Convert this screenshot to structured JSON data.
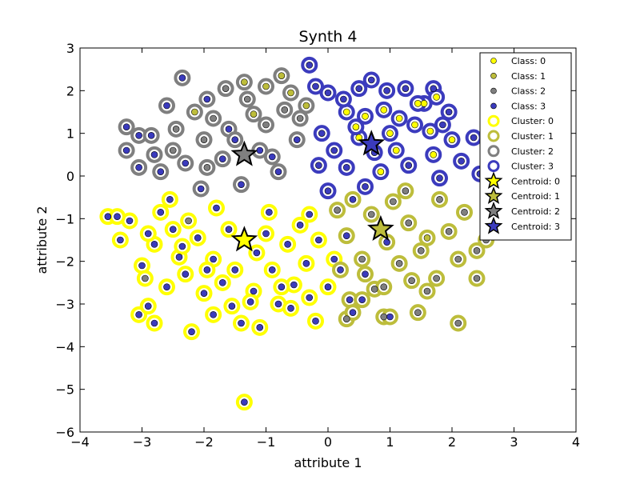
{
  "chart_data": {
    "type": "scatter",
    "title": "Synth 4",
    "xlabel": "attribute 1",
    "ylabel": "attribute 2",
    "xlim": [
      -4,
      4
    ],
    "ylim": [
      -6,
      3
    ],
    "xticks": [
      -4,
      -3,
      -2,
      -1,
      0,
      1,
      2,
      3,
      4
    ],
    "yticks": [
      -6,
      -5,
      -4,
      -3,
      -2,
      -1,
      0,
      1,
      2,
      3
    ],
    "xtick_labels": [
      "−4",
      "−3",
      "−2",
      "−1",
      "0",
      "1",
      "2",
      "3",
      "4"
    ],
    "ytick_labels": [
      "−6",
      "−5",
      "−4",
      "−3",
      "−2",
      "−1",
      "0",
      "1",
      "2",
      "3"
    ],
    "grid": false,
    "legend_position": "top-right",
    "legend": [
      {
        "label": "Class: 0",
        "kind": "class",
        "color": "#ffff00"
      },
      {
        "label": "Class: 1",
        "kind": "class",
        "color": "#bdbd3b"
      },
      {
        "label": "Class: 2",
        "kind": "class",
        "color": "#7f7f7f"
      },
      {
        "label": "Class: 3",
        "kind": "class",
        "color": "#3b3bbd"
      },
      {
        "label": "Cluster: 0",
        "kind": "cluster",
        "color": "#ffff00"
      },
      {
        "label": "Cluster: 1",
        "kind": "cluster",
        "color": "#bdbd3b"
      },
      {
        "label": "Cluster: 2",
        "kind": "cluster",
        "color": "#7f7f7f"
      },
      {
        "label": "Cluster: 3",
        "kind": "cluster",
        "color": "#3b3bbd"
      },
      {
        "label": "Centroid: 0",
        "kind": "centroid",
        "color": "#ffff00"
      },
      {
        "label": "Centroid: 1",
        "kind": "centroid",
        "color": "#bdbd3b"
      },
      {
        "label": "Centroid: 2",
        "kind": "centroid",
        "color": "#7f7f7f"
      },
      {
        "label": "Centroid: 3",
        "kind": "centroid",
        "color": "#3b3bbd"
      }
    ],
    "colors": [
      "#ffff00",
      "#bdbd3b",
      "#7f7f7f",
      "#3b3bbd"
    ],
    "centroids": [
      {
        "cluster": 0,
        "x": -1.35,
        "y": -1.5
      },
      {
        "cluster": 1,
        "x": 0.85,
        "y": -1.25
      },
      {
        "cluster": 2,
        "x": -1.35,
        "y": 0.5
      },
      {
        "cluster": 3,
        "x": 0.7,
        "y": 0.75
      }
    ],
    "points": [
      {
        "x": -1.35,
        "y": -5.3,
        "class": 3,
        "cluster": 0
      },
      {
        "x": -3.55,
        "y": -0.95,
        "class": 3,
        "cluster": 0
      },
      {
        "x": -3.35,
        "y": -1.5,
        "class": 3,
        "cluster": 0
      },
      {
        "x": -3.05,
        "y": -3.25,
        "class": 3,
        "cluster": 0
      },
      {
        "x": -2.9,
        "y": -3.05,
        "class": 3,
        "cluster": 0
      },
      {
        "x": -2.8,
        "y": -3.45,
        "class": 3,
        "cluster": 0
      },
      {
        "x": -2.2,
        "y": -3.65,
        "class": 3,
        "cluster": 0
      },
      {
        "x": -1.85,
        "y": -3.25,
        "class": 3,
        "cluster": 0
      },
      {
        "x": -1.4,
        "y": -3.45,
        "class": 3,
        "cluster": 0
      },
      {
        "x": -1.1,
        "y": -3.55,
        "class": 3,
        "cluster": 0
      },
      {
        "x": -0.2,
        "y": -3.4,
        "class": 3,
        "cluster": 0
      },
      {
        "x": -3.0,
        "y": -2.1,
        "class": 3,
        "cluster": 0
      },
      {
        "x": -2.6,
        "y": -2.6,
        "class": 3,
        "cluster": 0
      },
      {
        "x": -2.3,
        "y": -2.3,
        "class": 3,
        "cluster": 0
      },
      {
        "x": -2.0,
        "y": -2.75,
        "class": 3,
        "cluster": 0
      },
      {
        "x": -1.7,
        "y": -2.5,
        "class": 3,
        "cluster": 0
      },
      {
        "x": -1.55,
        "y": -3.05,
        "class": 3,
        "cluster": 0
      },
      {
        "x": -1.2,
        "y": -2.7,
        "class": 3,
        "cluster": 0
      },
      {
        "x": -0.8,
        "y": -3.0,
        "class": 3,
        "cluster": 0
      },
      {
        "x": -0.55,
        "y": -2.55,
        "class": 3,
        "cluster": 0
      },
      {
        "x": -0.3,
        "y": -2.85,
        "class": 3,
        "cluster": 0
      },
      {
        "x": -2.8,
        "y": -1.6,
        "class": 3,
        "cluster": 0
      },
      {
        "x": -2.4,
        "y": -1.9,
        "class": 3,
        "cluster": 0
      },
      {
        "x": -2.1,
        "y": -1.45,
        "class": 3,
        "cluster": 0
      },
      {
        "x": -1.85,
        "y": -1.95,
        "class": 3,
        "cluster": 0
      },
      {
        "x": -1.6,
        "y": -1.25,
        "class": 3,
        "cluster": 0
      },
      {
        "x": -1.15,
        "y": -1.8,
        "class": 3,
        "cluster": 0
      },
      {
        "x": -0.9,
        "y": -2.2,
        "class": 3,
        "cluster": 0
      },
      {
        "x": -0.65,
        "y": -1.6,
        "class": 3,
        "cluster": 0
      },
      {
        "x": -0.35,
        "y": -2.05,
        "class": 3,
        "cluster": 0
      },
      {
        "x": -0.15,
        "y": -1.5,
        "class": 3,
        "cluster": 0
      },
      {
        "x": -3.2,
        "y": -1.05,
        "class": 3,
        "cluster": 0
      },
      {
        "x": -2.7,
        "y": -0.85,
        "class": 3,
        "cluster": 0
      },
      {
        "x": -2.5,
        "y": -1.25,
        "class": 3,
        "cluster": 0
      },
      {
        "x": -2.95,
        "y": -2.4,
        "class": 2,
        "cluster": 0
      },
      {
        "x": -2.25,
        "y": -1.05,
        "class": 2,
        "cluster": 0
      },
      {
        "x": -1.5,
        "y": -2.2,
        "class": 3,
        "cluster": 0
      },
      {
        "x": -1.0,
        "y": -1.35,
        "class": 3,
        "cluster": 0
      },
      {
        "x": -0.45,
        "y": -1.15,
        "class": 3,
        "cluster": 0
      },
      {
        "x": 0.0,
        "y": -2.6,
        "class": 3,
        "cluster": 0
      },
      {
        "x": 0.1,
        "y": -1.95,
        "class": 3,
        "cluster": 0
      },
      {
        "x": -0.75,
        "y": -2.6,
        "class": 3,
        "cluster": 0
      },
      {
        "x": -1.95,
        "y": -2.2,
        "class": 3,
        "cluster": 0
      },
      {
        "x": -2.55,
        "y": -0.55,
        "class": 3,
        "cluster": 0
      },
      {
        "x": -1.8,
        "y": -0.75,
        "class": 3,
        "cluster": 0
      },
      {
        "x": -0.95,
        "y": -0.85,
        "class": 3,
        "cluster": 0
      },
      {
        "x": -0.3,
        "y": -0.9,
        "class": 3,
        "cluster": 0
      },
      {
        "x": -1.25,
        "y": -2.95,
        "class": 3,
        "cluster": 0
      },
      {
        "x": -3.4,
        "y": -0.95,
        "class": 3,
        "cluster": 0
      },
      {
        "x": -2.9,
        "y": -1.35,
        "class": 3,
        "cluster": 0
      },
      {
        "x": -0.6,
        "y": -3.1,
        "class": 3,
        "cluster": 0
      },
      {
        "x": -2.35,
        "y": -1.65,
        "class": 3,
        "cluster": 0
      },
      {
        "x": 0.3,
        "y": -3.35,
        "class": 2,
        "cluster": 1
      },
      {
        "x": 0.35,
        "y": -2.9,
        "class": 3,
        "cluster": 1
      },
      {
        "x": 0.4,
        "y": -3.2,
        "class": 3,
        "cluster": 1
      },
      {
        "x": 0.55,
        "y": -2.9,
        "class": 3,
        "cluster": 1
      },
      {
        "x": 0.75,
        "y": -2.65,
        "class": 2,
        "cluster": 1
      },
      {
        "x": 0.9,
        "y": -3.3,
        "class": 2,
        "cluster": 1
      },
      {
        "x": 1.0,
        "y": -3.3,
        "class": 3,
        "cluster": 1
      },
      {
        "x": 1.45,
        "y": -3.2,
        "class": 2,
        "cluster": 1
      },
      {
        "x": 1.6,
        "y": -2.7,
        "class": 2,
        "cluster": 1
      },
      {
        "x": 2.1,
        "y": -3.45,
        "class": 2,
        "cluster": 1
      },
      {
        "x": 2.4,
        "y": -2.4,
        "class": 2,
        "cluster": 1
      },
      {
        "x": 2.4,
        "y": -1.75,
        "class": 2,
        "cluster": 1
      },
      {
        "x": 1.8,
        "y": -0.55,
        "class": 2,
        "cluster": 1
      },
      {
        "x": 2.1,
        "y": -1.95,
        "class": 2,
        "cluster": 1
      },
      {
        "x": 1.75,
        "y": -2.4,
        "class": 2,
        "cluster": 1
      },
      {
        "x": 1.5,
        "y": -1.75,
        "class": 2,
        "cluster": 1
      },
      {
        "x": 1.3,
        "y": -1.1,
        "class": 2,
        "cluster": 1
      },
      {
        "x": 1.15,
        "y": -2.05,
        "class": 2,
        "cluster": 1
      },
      {
        "x": 0.95,
        "y": -1.55,
        "class": 3,
        "cluster": 1
      },
      {
        "x": 0.7,
        "y": -0.9,
        "class": 2,
        "cluster": 1
      },
      {
        "x": 0.55,
        "y": -1.95,
        "class": 2,
        "cluster": 1
      },
      {
        "x": 0.3,
        "y": -1.4,
        "class": 3,
        "cluster": 1
      },
      {
        "x": 0.15,
        "y": -0.8,
        "class": 2,
        "cluster": 1
      },
      {
        "x": 0.6,
        "y": -2.3,
        "class": 3,
        "cluster": 1
      },
      {
        "x": 1.35,
        "y": -2.45,
        "class": 2,
        "cluster": 1
      },
      {
        "x": 1.95,
        "y": -1.3,
        "class": 2,
        "cluster": 1
      },
      {
        "x": 2.2,
        "y": -0.85,
        "class": 2,
        "cluster": 1
      },
      {
        "x": 1.05,
        "y": -0.6,
        "class": 2,
        "cluster": 1
      },
      {
        "x": 0.4,
        "y": -0.55,
        "class": 3,
        "cluster": 1
      },
      {
        "x": 1.6,
        "y": -1.45,
        "class": 1,
        "cluster": 1
      },
      {
        "x": 0.9,
        "y": -2.6,
        "class": 2,
        "cluster": 1
      },
      {
        "x": 1.25,
        "y": -0.35,
        "class": 2,
        "cluster": 1
      },
      {
        "x": 2.55,
        "y": -1.5,
        "class": 2,
        "cluster": 1
      },
      {
        "x": 0.2,
        "y": -2.2,
        "class": 3,
        "cluster": 1
      },
      {
        "x": -2.35,
        "y": 2.3,
        "class": 3,
        "cluster": 2
      },
      {
        "x": -2.6,
        "y": 1.65,
        "class": 3,
        "cluster": 2
      },
      {
        "x": -3.25,
        "y": 1.15,
        "class": 3,
        "cluster": 2
      },
      {
        "x": -3.25,
        "y": 0.6,
        "class": 3,
        "cluster": 2
      },
      {
        "x": -3.05,
        "y": 0.95,
        "class": 3,
        "cluster": 2
      },
      {
        "x": -2.85,
        "y": 0.95,
        "class": 3,
        "cluster": 2
      },
      {
        "x": -3.05,
        "y": 0.2,
        "class": 3,
        "cluster": 2
      },
      {
        "x": -2.7,
        "y": 0.1,
        "class": 3,
        "cluster": 2
      },
      {
        "x": -2.5,
        "y": 0.6,
        "class": 2,
        "cluster": 2
      },
      {
        "x": -2.15,
        "y": 1.5,
        "class": 1,
        "cluster": 2
      },
      {
        "x": -1.95,
        "y": 1.8,
        "class": 3,
        "cluster": 2
      },
      {
        "x": -1.65,
        "y": 2.05,
        "class": 2,
        "cluster": 2
      },
      {
        "x": -1.3,
        "y": 1.8,
        "class": 2,
        "cluster": 2
      },
      {
        "x": -1.0,
        "y": 2.1,
        "class": 1,
        "cluster": 2
      },
      {
        "x": -0.75,
        "y": 2.35,
        "class": 1,
        "cluster": 2
      },
      {
        "x": -0.7,
        "y": 1.55,
        "class": 2,
        "cluster": 2
      },
      {
        "x": -1.0,
        "y": 1.2,
        "class": 2,
        "cluster": 2
      },
      {
        "x": -1.6,
        "y": 1.1,
        "class": 3,
        "cluster": 2
      },
      {
        "x": -2.0,
        "y": 0.85,
        "class": 2,
        "cluster": 2
      },
      {
        "x": -2.3,
        "y": 0.3,
        "class": 3,
        "cluster": 2
      },
      {
        "x": -1.7,
        "y": 0.4,
        "class": 3,
        "cluster": 2
      },
      {
        "x": -1.1,
        "y": 0.6,
        "class": 3,
        "cluster": 2
      },
      {
        "x": -0.8,
        "y": 0.1,
        "class": 3,
        "cluster": 2
      },
      {
        "x": -1.4,
        "y": -0.2,
        "class": 3,
        "cluster": 2
      },
      {
        "x": -2.05,
        "y": -0.3,
        "class": 3,
        "cluster": 2
      },
      {
        "x": -0.5,
        "y": 0.85,
        "class": 3,
        "cluster": 2
      },
      {
        "x": -0.45,
        "y": 1.35,
        "class": 2,
        "cluster": 2
      },
      {
        "x": -0.6,
        "y": 1.95,
        "class": 1,
        "cluster": 2
      },
      {
        "x": -2.45,
        "y": 1.1,
        "class": 2,
        "cluster": 2
      },
      {
        "x": -1.85,
        "y": 1.35,
        "class": 2,
        "cluster": 2
      },
      {
        "x": -1.2,
        "y": 1.45,
        "class": 1,
        "cluster": 2
      },
      {
        "x": -2.8,
        "y": 0.5,
        "class": 3,
        "cluster": 2
      },
      {
        "x": -1.5,
        "y": 0.85,
        "class": 3,
        "cluster": 2
      },
      {
        "x": -0.9,
        "y": 0.45,
        "class": 3,
        "cluster": 2
      },
      {
        "x": -1.95,
        "y": 0.2,
        "class": 2,
        "cluster": 2
      },
      {
        "x": -0.35,
        "y": 1.65,
        "class": 1,
        "cluster": 2
      },
      {
        "x": -1.35,
        "y": 2.2,
        "class": 1,
        "cluster": 2
      },
      {
        "x": 0.0,
        "y": 1.95,
        "class": 3,
        "cluster": 3
      },
      {
        "x": -0.3,
        "y": 2.6,
        "class": 3,
        "cluster": 3
      },
      {
        "x": -0.2,
        "y": 2.1,
        "class": 3,
        "cluster": 3
      },
      {
        "x": 0.5,
        "y": 2.05,
        "class": 3,
        "cluster": 3
      },
      {
        "x": 0.95,
        "y": 2.0,
        "class": 3,
        "cluster": 3
      },
      {
        "x": 1.25,
        "y": 2.05,
        "class": 3,
        "cluster": 3
      },
      {
        "x": 1.7,
        "y": 2.05,
        "class": 3,
        "cluster": 3
      },
      {
        "x": 1.75,
        "y": 1.85,
        "class": 0,
        "cluster": 3
      },
      {
        "x": 1.55,
        "y": 1.7,
        "class": 0,
        "cluster": 3
      },
      {
        "x": 0.7,
        "y": 2.25,
        "class": 3,
        "cluster": 3
      },
      {
        "x": 0.3,
        "y": 1.5,
        "class": 0,
        "cluster": 3
      },
      {
        "x": 0.6,
        "y": 1.4,
        "class": 0,
        "cluster": 3
      },
      {
        "x": 0.9,
        "y": 1.55,
        "class": 0,
        "cluster": 3
      },
      {
        "x": 1.15,
        "y": 1.35,
        "class": 0,
        "cluster": 3
      },
      {
        "x": 1.4,
        "y": 1.2,
        "class": 0,
        "cluster": 3
      },
      {
        "x": 1.65,
        "y": 1.05,
        "class": 0,
        "cluster": 3
      },
      {
        "x": 1.85,
        "y": 1.2,
        "class": 3,
        "cluster": 3
      },
      {
        "x": 2.0,
        "y": 0.85,
        "class": 0,
        "cluster": 3
      },
      {
        "x": 2.35,
        "y": 0.9,
        "class": 3,
        "cluster": 3
      },
      {
        "x": 2.45,
        "y": 0.05,
        "class": 3,
        "cluster": 3
      },
      {
        "x": 2.6,
        "y": 0.8,
        "class": 0,
        "cluster": 3
      },
      {
        "x": 1.7,
        "y": 0.5,
        "class": 0,
        "cluster": 3
      },
      {
        "x": 1.1,
        "y": 0.6,
        "class": 0,
        "cluster": 3
      },
      {
        "x": 0.5,
        "y": 0.9,
        "class": 0,
        "cluster": 3
      },
      {
        "x": 0.1,
        "y": 0.6,
        "class": 3,
        "cluster": 3
      },
      {
        "x": -0.1,
        "y": 1.0,
        "class": 3,
        "cluster": 3
      },
      {
        "x": 0.3,
        "y": 0.2,
        "class": 3,
        "cluster": 3
      },
      {
        "x": 0.85,
        "y": 0.1,
        "class": 0,
        "cluster": 3
      },
      {
        "x": 1.3,
        "y": 0.25,
        "class": 3,
        "cluster": 3
      },
      {
        "x": 1.8,
        "y": -0.05,
        "class": 3,
        "cluster": 3
      },
      {
        "x": 2.15,
        "y": 0.35,
        "class": 3,
        "cluster": 3
      },
      {
        "x": 0.6,
        "y": -0.25,
        "class": 3,
        "cluster": 3
      },
      {
        "x": 0.0,
        "y": -0.35,
        "class": 3,
        "cluster": 3
      },
      {
        "x": 1.45,
        "y": 1.7,
        "class": 0,
        "cluster": 3
      },
      {
        "x": 0.25,
        "y": 1.8,
        "class": 3,
        "cluster": 3
      },
      {
        "x": 1.0,
        "y": 1.0,
        "class": 0,
        "cluster": 3
      },
      {
        "x": 0.75,
        "y": 0.55,
        "class": 3,
        "cluster": 3
      },
      {
        "x": -0.15,
        "y": 0.25,
        "class": 3,
        "cluster": 3
      },
      {
        "x": 0.45,
        "y": 1.15,
        "class": 0,
        "cluster": 3
      },
      {
        "x": 1.95,
        "y": 1.5,
        "class": 3,
        "cluster": 3
      }
    ]
  }
}
